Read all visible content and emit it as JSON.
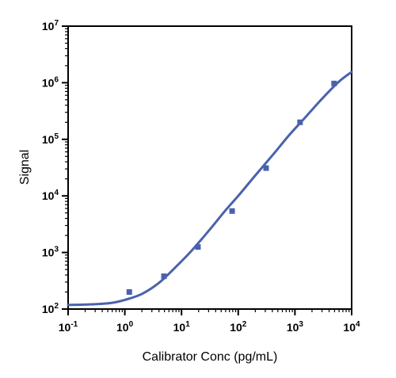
{
  "chart_data": {
    "type": "scatter",
    "title": "",
    "xlabel": "Calibrator Conc (pg/mL)",
    "ylabel": "Signal",
    "x_scale": "log",
    "y_scale": "log",
    "xlim": [
      0.1,
      10000
    ],
    "ylim": [
      100,
      10000000
    ],
    "x_ticks": [
      {
        "base": "10",
        "exp": "-1",
        "value": 0.1
      },
      {
        "base": "10",
        "exp": "0",
        "value": 1
      },
      {
        "base": "10",
        "exp": "1",
        "value": 10
      },
      {
        "base": "10",
        "exp": "2",
        "value": 100
      },
      {
        "base": "10",
        "exp": "3",
        "value": 1000
      },
      {
        "base": "10",
        "exp": "4",
        "value": 10000
      }
    ],
    "y_ticks": [
      {
        "base": "10",
        "exp": "2",
        "value": 100
      },
      {
        "base": "10",
        "exp": "3",
        "value": 1000
      },
      {
        "base": "10",
        "exp": "4",
        "value": 10000
      },
      {
        "base": "10",
        "exp": "5",
        "value": 100000
      },
      {
        "base": "10",
        "exp": "6",
        "value": 1000000
      },
      {
        "base": "10",
        "exp": "7",
        "value": 10000000
      }
    ],
    "grid": false,
    "legend": "none",
    "series": [
      {
        "kind": "points",
        "marker": "square",
        "color": "#4a62ad",
        "x": [
          1.2,
          4.9,
          19.5,
          78,
          310,
          1230,
          4900
        ],
        "y": [
          200,
          380,
          1250,
          5400,
          31000,
          200000,
          970000
        ]
      },
      {
        "kind": "fit-curve",
        "color": "#4a62ad",
        "x": [
          0.1,
          0.3,
          0.6,
          1,
          2,
          4,
          8,
          15,
          30,
          60,
          100,
          200,
          400,
          800,
          1500,
          3000,
          6000,
          10000
        ],
        "y": [
          118,
          122,
          129,
          145,
          185,
          290,
          560,
          1070,
          2400,
          5600,
          10000,
          23000,
          52000,
          120000,
          240000,
          520000,
          1050000,
          1550000
        ]
      }
    ]
  }
}
